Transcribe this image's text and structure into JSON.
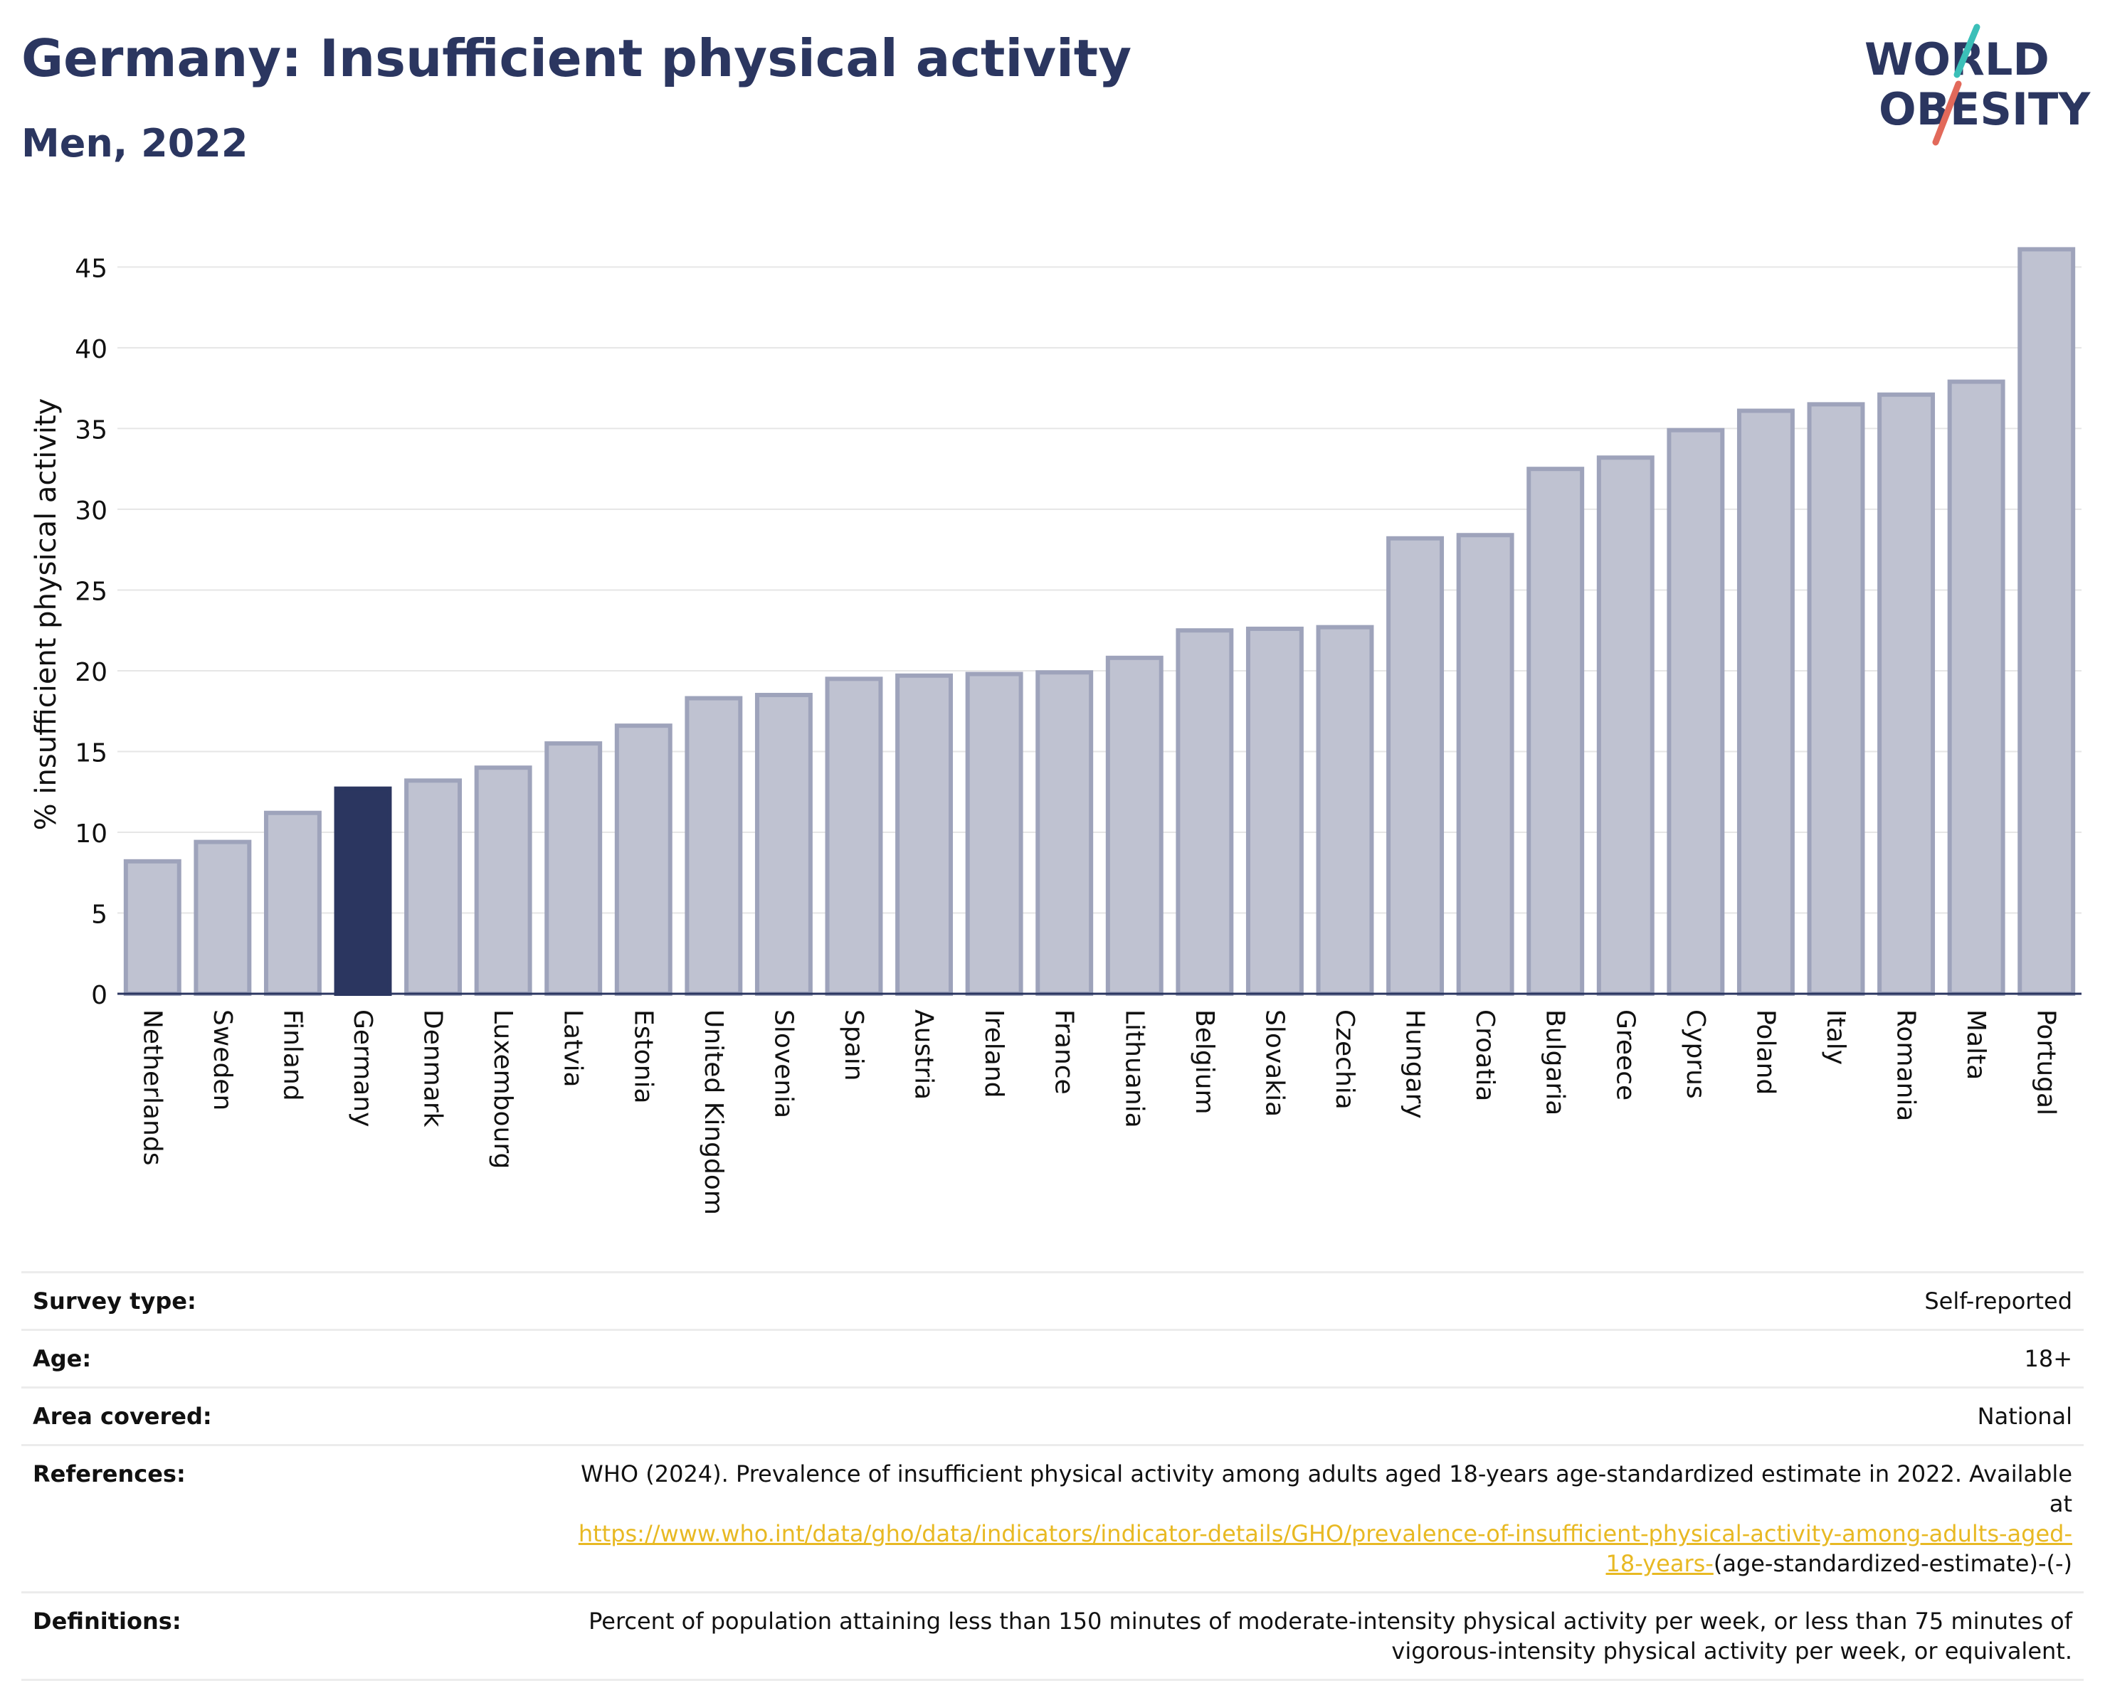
{
  "header": {
    "title": "Germany: Insufficient physical activity",
    "subtitle": "Men, 2022"
  },
  "logo": {
    "line1": "WORLD",
    "line2": "OBESITY",
    "accent_teal": "#3bbfb8",
    "accent_red": "#e2695a"
  },
  "chart_data": {
    "type": "bar",
    "title": "Germany: Insufficient physical activity",
    "subtitle": "Men, 2022",
    "xlabel": "",
    "ylabel": "% insufficient physical activity",
    "ylim": [
      0,
      47
    ],
    "yticks": [
      0,
      5,
      10,
      15,
      20,
      25,
      30,
      35,
      40,
      45
    ],
    "grid": true,
    "highlight": "Germany",
    "colors": {
      "bar": "#bfc2d1",
      "bar_edge": "#9ea3bb",
      "highlight": "#2b3660",
      "grid": "#e6e6e6",
      "axis": "#2b3660"
    },
    "categories": [
      "Netherlands",
      "Sweden",
      "Finland",
      "Germany",
      "Denmark",
      "Luxembourg",
      "Latvia",
      "Estonia",
      "United Kingdom",
      "Slovenia",
      "Spain",
      "Austria",
      "Ireland",
      "France",
      "Lithuania",
      "Belgium",
      "Slovakia",
      "Czechia",
      "Hungary",
      "Croatia",
      "Bulgaria",
      "Greece",
      "Cyprus",
      "Poland",
      "Italy",
      "Romania",
      "Malta",
      "Portugal"
    ],
    "values": [
      8.2,
      9.4,
      11.2,
      12.7,
      13.2,
      14.0,
      15.5,
      16.6,
      18.3,
      18.5,
      19.5,
      19.7,
      19.8,
      19.9,
      20.8,
      22.5,
      22.6,
      22.7,
      28.2,
      28.4,
      32.5,
      33.2,
      34.9,
      36.1,
      36.5,
      37.1,
      37.9,
      46.1
    ]
  },
  "meta": {
    "survey_label": "Survey type:",
    "survey_value": "Self-reported",
    "age_label": "Age:",
    "age_value": "18+",
    "area_label": "Area covered:",
    "area_value": "National",
    "references_label": "References:",
    "references_text": "WHO (2024). Prevalence of insufficient physical activity among adults aged 18-years age-standardized estimate in 2022. Available at",
    "references_link": "https://www.who.int/data/gho/data/indicators/indicator-details/GHO/prevalence-of-insufficient-physical-activity-among-adults-aged-18-years-",
    "references_suffix": "(age-standardized-estimate)-(-)",
    "definitions_label": "Definitions:",
    "definitions_text": "Percent of population attaining less than 150 minutes of moderate-intensity physical activity per week, or less than 75 minutes of vigorous-intensity physical activity per week, or equivalent."
  }
}
